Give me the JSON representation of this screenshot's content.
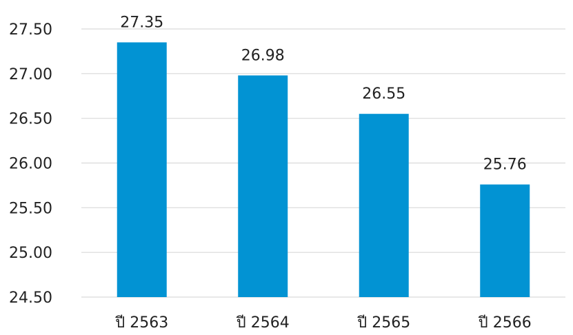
{
  "chart_data": {
    "type": "bar",
    "categories": [
      "ปี 2563",
      "ปี 2564",
      "ปี 2565",
      "ปี 2566"
    ],
    "values": [
      27.35,
      26.98,
      26.55,
      25.76
    ],
    "data_labels": [
      "27.35",
      "26.98",
      "26.55",
      "25.76"
    ],
    "y_ticks": [
      "24.50",
      "25.00",
      "25.50",
      "26.00",
      "26.50",
      "27.00",
      "27.50"
    ],
    "title": "",
    "xlabel": "",
    "ylabel": "",
    "ylim": [
      24.5,
      27.5
    ],
    "grid": true,
    "legend": "none",
    "bar_color": "#0293d3"
  }
}
